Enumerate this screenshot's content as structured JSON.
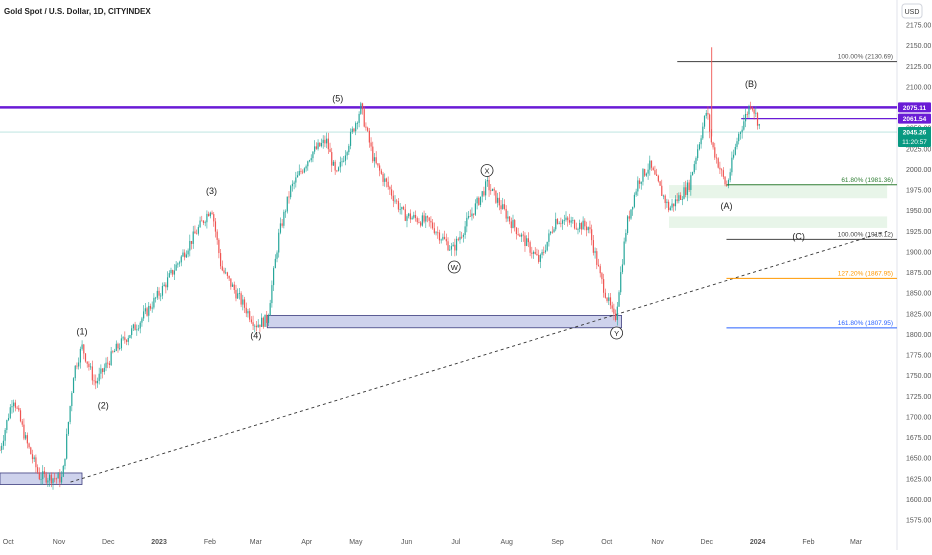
{
  "header": {
    "symbol_title": "Gold Spot / U.S. Dollar, 1D, CITYINDEX"
  },
  "currency_button": {
    "label": "USD"
  },
  "colors": {
    "up": "#26a69a",
    "down": "#ef5350",
    "purple": "#6a1bd6",
    "gray_line": "#444444",
    "fib_1": "#555555",
    "fib_1272": "#ff9800",
    "fib_1618": "#2962ff",
    "fib_618": "#2e7d32",
    "zone_blue": "#c5cae9",
    "zone_green": "#e8f5e9",
    "badge_teal": "#089981"
  },
  "chart_data": {
    "type": "candlestick",
    "instrument": "Gold Spot / U.S. Dollar",
    "interval": "1D",
    "source": "CITYINDEX",
    "currency": "USD",
    "ylim": [
      1575,
      2175
    ],
    "y_ticks": [
      1575,
      1600,
      1625,
      1650,
      1675,
      1700,
      1725,
      1750,
      1775,
      1800,
      1825,
      1850,
      1875,
      1900,
      1925,
      1950,
      1975,
      2000,
      2025,
      2050,
      2075,
      2100,
      2125,
      2150,
      2175
    ],
    "x_labels": [
      "Oct",
      "Nov",
      "Dec",
      "2023",
      "Feb",
      "Mar",
      "Apr",
      "May",
      "Jun",
      "Jul",
      "Aug",
      "Sep",
      "Oct",
      "Nov",
      "Dec",
      "2024",
      "Feb",
      "Mar"
    ],
    "price_path": [
      {
        "date": "2022-09-26",
        "price": 1660
      },
      {
        "date": "2022-10-04",
        "price": 1725
      },
      {
        "date": "2022-10-12",
        "price": 1670
      },
      {
        "date": "2022-10-20",
        "price": 1628
      },
      {
        "date": "2022-11-03",
        "price": 1625
      },
      {
        "date": "2022-11-10",
        "price": 1755
      },
      {
        "date": "2022-11-15",
        "price": 1785
      },
      {
        "date": "2022-11-23",
        "price": 1740
      },
      {
        "date": "2022-12-05",
        "price": 1780
      },
      {
        "date": "2022-12-20",
        "price": 1815
      },
      {
        "date": "2023-01-03",
        "price": 1855
      },
      {
        "date": "2023-01-18",
        "price": 1905
      },
      {
        "date": "2023-02-02",
        "price": 1955
      },
      {
        "date": "2023-02-08",
        "price": 1880
      },
      {
        "date": "2023-02-20",
        "price": 1840
      },
      {
        "date": "2023-03-01",
        "price": 1812
      },
      {
        "date": "2023-03-08",
        "price": 1818
      },
      {
        "date": "2023-03-15",
        "price": 1920
      },
      {
        "date": "2023-03-22",
        "price": 1975
      },
      {
        "date": "2023-04-04",
        "price": 2020
      },
      {
        "date": "2023-04-13",
        "price": 2035
      },
      {
        "date": "2023-04-19",
        "price": 1990
      },
      {
        "date": "2023-05-04",
        "price": 2075
      },
      {
        "date": "2023-05-12",
        "price": 2010
      },
      {
        "date": "2023-05-30",
        "price": 1945
      },
      {
        "date": "2023-06-15",
        "price": 1935
      },
      {
        "date": "2023-06-29",
        "price": 1902
      },
      {
        "date": "2023-07-05",
        "price": 1925
      },
      {
        "date": "2023-07-20",
        "price": 1982
      },
      {
        "date": "2023-08-03",
        "price": 1938
      },
      {
        "date": "2023-08-21",
        "price": 1888
      },
      {
        "date": "2023-08-31",
        "price": 1940
      },
      {
        "date": "2023-09-20",
        "price": 1930
      },
      {
        "date": "2023-09-27",
        "price": 1870
      },
      {
        "date": "2023-10-06",
        "price": 1815
      },
      {
        "date": "2023-10-13",
        "price": 1932
      },
      {
        "date": "2023-10-20",
        "price": 1985
      },
      {
        "date": "2023-10-27",
        "price": 2005
      },
      {
        "date": "2023-11-08",
        "price": 1952
      },
      {
        "date": "2023-11-20",
        "price": 1980
      },
      {
        "date": "2023-12-01",
        "price": 2072
      },
      {
        "date": "2023-12-04",
        "price": 2030
      },
      {
        "date": "2023-12-13",
        "price": 1978
      },
      {
        "date": "2023-12-20",
        "price": 2040
      },
      {
        "date": "2023-12-28",
        "price": 2082
      },
      {
        "date": "2024-01-03",
        "price": 2048
      }
    ],
    "dec4_wick_high": 2148,
    "price_badges": [
      {
        "value": 2075.11,
        "label": "2075.11",
        "color": "#6a1bd6"
      },
      {
        "value": 2061.54,
        "label": "2061.54",
        "color": "#6a1bd6"
      },
      {
        "value": 2045.26,
        "label": "2045.26",
        "sublabel": "11:20:57",
        "color": "#089981"
      }
    ],
    "horizontal_lines": [
      {
        "value": 2075.11,
        "color": "#6a1bd6",
        "from": "2022-09-26"
      },
      {
        "value": 2061.54,
        "color": "#6a1bd6",
        "from": "2023-12-22"
      },
      {
        "value": 2130.69,
        "color": "#555555",
        "from": "2023-11-13"
      }
    ],
    "fib_levels": [
      {
        "label": "100.00% (2130.69)",
        "value": 2130.69,
        "color": "#555555",
        "from": "2023-11-13"
      },
      {
        "label": "61.80% (1981.36)",
        "value": 1981.36,
        "color": "#2e7d32",
        "from": "2023-12-13"
      },
      {
        "label": "100.00% (1915.12)",
        "value": 1915.12,
        "color": "#444444",
        "from": "2023-12-13"
      },
      {
        "label": "127.20% (1867.95)",
        "value": 1867.95,
        "color": "#ff9800",
        "from": "2023-12-13"
      },
      {
        "label": "161.80% (1807.95)",
        "value": 1807.95,
        "color": "#2962ff",
        "from": "2023-12-13"
      }
    ],
    "zones": [
      {
        "kind": "blue",
        "from": "2022-09-26",
        "to": "2022-11-15",
        "low": 1618,
        "high": 1632
      },
      {
        "kind": "blue",
        "from": "2023-03-08",
        "to": "2023-10-10",
        "low": 1808,
        "high": 1823
      },
      {
        "kind": "green",
        "from": "2023-11-08",
        "to": "2024-03-20",
        "low": 1965,
        "high": 1981
      },
      {
        "kind": "green",
        "from": "2023-11-08",
        "to": "2024-03-20",
        "low": 1929,
        "high": 1943
      }
    ],
    "trendline": {
      "from": {
        "date": "2022-11-08",
        "price": 1621
      },
      "to": {
        "date": "2024-03-20",
        "price": 1925
      }
    },
    "wave_labels": [
      {
        "text": "(1)",
        "date": "2022-11-15",
        "price": 1800
      },
      {
        "text": "(2)",
        "date": "2022-11-28",
        "price": 1710
      },
      {
        "text": "(3)",
        "date": "2023-02-02",
        "price": 1970
      },
      {
        "text": "(4)",
        "date": "2023-03-01",
        "price": 1795
      },
      {
        "text": "(5)",
        "date": "2023-04-20",
        "price": 2082
      },
      {
        "text": "W",
        "date": "2023-06-30",
        "price": 1878,
        "circle": true
      },
      {
        "text": "X",
        "date": "2023-07-20",
        "price": 1995,
        "circle": true
      },
      {
        "text": "Y",
        "date": "2023-10-07",
        "price": 1798,
        "circle": true
      },
      {
        "text": "(A)",
        "date": "2023-12-13",
        "price": 1952
      },
      {
        "text": "(B)",
        "date": "2023-12-28",
        "price": 2100
      },
      {
        "text": "(C)",
        "date": "2024-01-26",
        "price": 1915
      }
    ]
  }
}
